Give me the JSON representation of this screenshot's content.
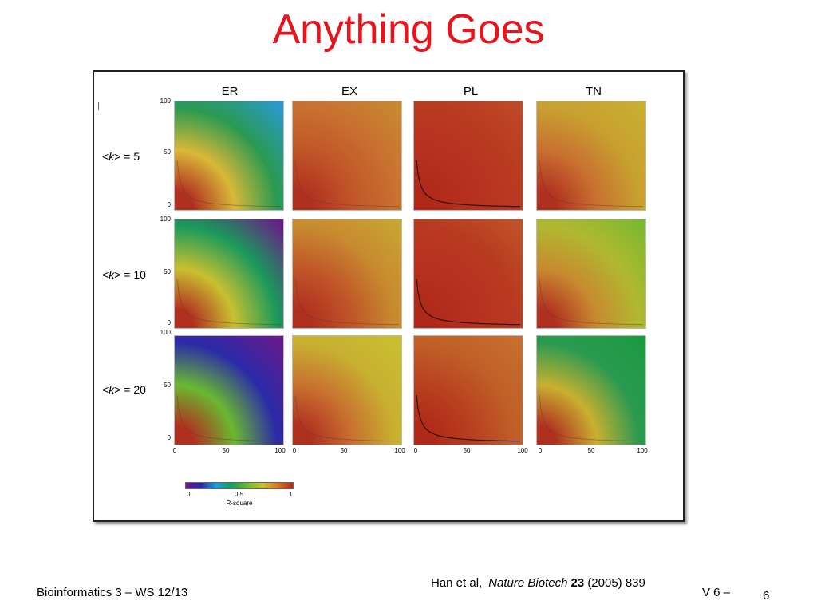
{
  "slide": {
    "title": "Anything Goes",
    "footer_left": "Bioinformatics 3 – WS 12/13",
    "footer_right": "V 6 –",
    "page_number": "6"
  },
  "citation": {
    "authors": "Han et al,",
    "journal": "Nature Biotech",
    "volume": "23",
    "rest": "(2005) 839"
  },
  "figure": {
    "columns": [
      "ER",
      "EX",
      "PL",
      "TN"
    ],
    "rows": [
      {
        "pre": "<",
        "k": "k",
        "post": "> = 5"
      },
      {
        "pre": "<",
        "k": "k",
        "post": "> = 10"
      },
      {
        "pre": "<",
        "k": "k",
        "post": "> = 20"
      }
    ],
    "y_ticks": [
      "100",
      "50",
      "0"
    ],
    "x_ticks": [
      "0",
      "50",
      "100"
    ],
    "colorbar": {
      "min_label": "0",
      "mid_label": "0.5",
      "max_label": "1",
      "title": "R-square",
      "colors": [
        "#6a1a8a",
        "#2a2aa8",
        "#1aa0d8",
        "#1a9a5a",
        "#6ab830",
        "#c8c030",
        "#d87828",
        "#b02818"
      ]
    },
    "panel_colors": {
      "ER": [
        [
          "#b03020",
          "#d8b838",
          "#2a9a50",
          "#2a9ad0"
        ],
        [
          "#b03020",
          "#c8c030",
          "#1a9a5a",
          "#6a1a8a"
        ],
        [
          "#b03020",
          "#6ab830",
          "#2a2aa8",
          "#6a1a8a"
        ]
      ],
      "EX": [
        [
          "#b03020",
          "#c05528",
          "#c87030",
          "#c88a30"
        ],
        [
          "#b03020",
          "#c05528",
          "#c88a30",
          "#c8a830"
        ],
        [
          "#b03020",
          "#c87030",
          "#c8b030",
          "#c8c030"
        ]
      ],
      "PL": [
        [
          "#b02818",
          "#b83020",
          "#b83a20",
          "#c04a28"
        ],
        [
          "#b02818",
          "#b83020",
          "#b83a20",
          "#c05528"
        ],
        [
          "#b02818",
          "#b84020",
          "#c06028",
          "#c87030"
        ]
      ],
      "TN": [
        [
          "#b03020",
          "#c87030",
          "#c8a030",
          "#c8b030"
        ],
        [
          "#b03020",
          "#c88a30",
          "#b0b830",
          "#78b830"
        ],
        [
          "#b03020",
          "#c8b030",
          "#2a9a50",
          "#1a9a40"
        ]
      ]
    }
  }
}
